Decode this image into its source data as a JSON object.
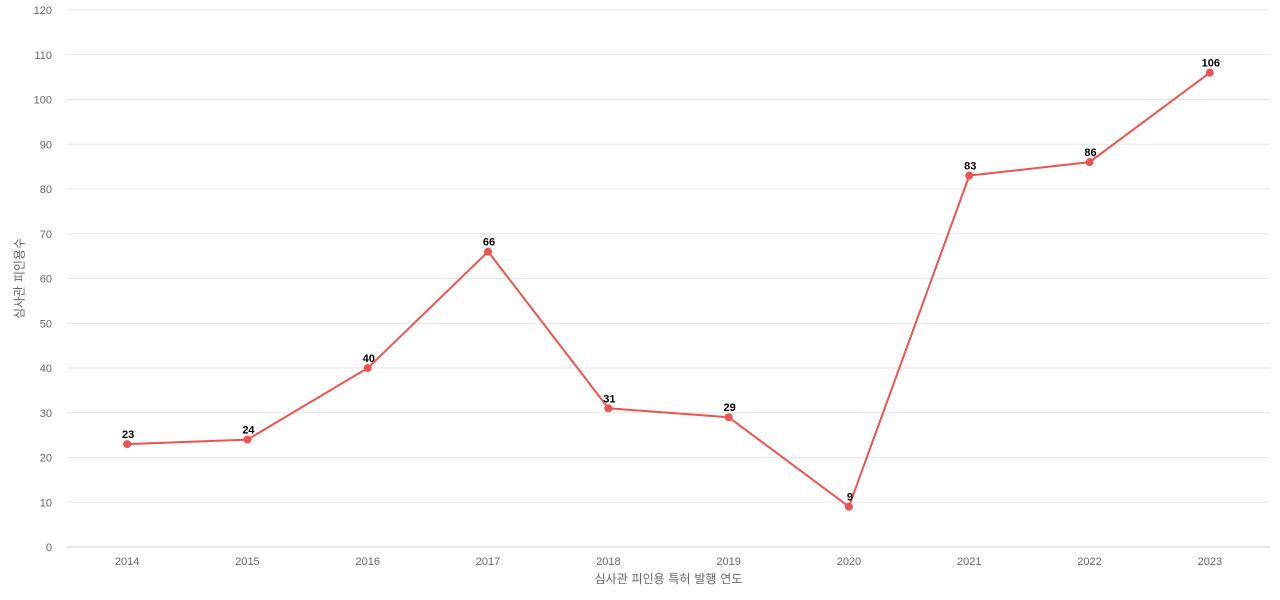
{
  "chart_data": {
    "type": "line",
    "categories": [
      "2014",
      "2015",
      "2016",
      "2017",
      "2018",
      "2019",
      "2020",
      "2021",
      "2022",
      "2023"
    ],
    "series": [
      {
        "values": [
          23,
          24,
          40,
          66,
          31,
          29,
          9,
          83,
          86,
          106
        ]
      }
    ],
    "xlabel": "심사관 피인용 특허 발행 연도",
    "ylabel": "심사관 피인용수",
    "ylim": [
      0,
      120
    ],
    "yticks": [
      0,
      10,
      20,
      30,
      40,
      50,
      60,
      70,
      80,
      90,
      100,
      110,
      120
    ],
    "grid": true,
    "data_labels": true,
    "colors": {
      "series": "#ef5350",
      "grid": "#e6e6e6",
      "axis_text": "#666666",
      "data_label": "#000000"
    }
  }
}
